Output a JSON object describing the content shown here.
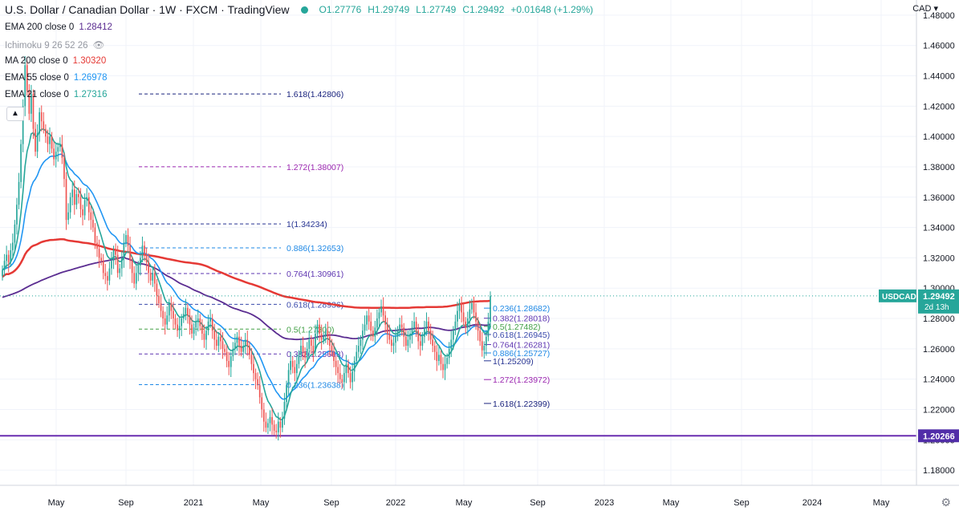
{
  "header": {
    "title": "U.S. Dollar / Canadian Dollar · 1W · FXCM · TradingView",
    "open": "O1.27776",
    "high": "H1.29749",
    "low": "L1.27749",
    "close": "C1.29492",
    "change": "+0.01648 (+1.29%)"
  },
  "indicators": [
    {
      "label": "EMA 200 close 0",
      "value": "1.28412",
      "color": "#5b2d91"
    },
    {
      "label": "Ichimoku 9 26 52 26",
      "value": "",
      "color": ""
    },
    {
      "label": "MA 200 close 0",
      "value": "1.30320",
      "color": "#e53935"
    },
    {
      "label": "EMA 55 close 0",
      "value": "1.26978",
      "color": "#2196f3"
    },
    {
      "label": "EMA 21 close 0",
      "value": "1.27316",
      "color": "#26a69a"
    }
  ],
  "currency_label": "CAD",
  "price_tag": {
    "symbol": "USDCAD",
    "price": "1.29492",
    "countdown": "2d 13h"
  },
  "level_tag": "1.20266",
  "colors": {
    "up": "#26a69a",
    "down": "#ef5350",
    "ma200": "#e53935",
    "ema200": "#5b2d91",
    "ema55": "#2196f3",
    "ema21": "#26a69a",
    "support": "#6a2fb0",
    "axis_text": "#131722"
  },
  "chart_data": {
    "type": "candlestick",
    "y_axis": {
      "min": 1.17,
      "max": 1.49,
      "ticks": [
        "1.48000",
        "1.46000",
        "1.44000",
        "1.42000",
        "1.40000",
        "1.38000",
        "1.36000",
        "1.34000",
        "1.32000",
        "1.30000",
        "1.28000",
        "1.26000",
        "1.24000",
        "1.22000",
        "1.20000",
        "1.18000"
      ]
    },
    "x_axis": {
      "ticks": [
        "May",
        "Sep",
        "2021",
        "May",
        "Sep",
        "2022",
        "May",
        "Sep",
        "2023",
        "May",
        "Sep",
        "2024",
        "May"
      ]
    },
    "fib_left": [
      {
        "label": "1.618(1.42806)",
        "price": 1.42806,
        "color": "#1a237e"
      },
      {
        "label": "1.272(1.38007)",
        "price": 1.38007,
        "color": "#9c27b0"
      },
      {
        "label": "1(1.34234)",
        "price": 1.34234,
        "color": "#283593"
      },
      {
        "label": "0.886(1.32653)",
        "price": 1.32653,
        "color": "#1e88e5"
      },
      {
        "label": "0.764(1.30961)",
        "price": 1.30961,
        "color": "#5e35b1"
      },
      {
        "label": "0.618(1.28936)",
        "price": 1.28936,
        "color": "#3949ab"
      },
      {
        "label": "0.5(1.27300)",
        "price": 1.273,
        "color": "#43a047"
      },
      {
        "label": "0.382(1.25663)",
        "price": 1.25663,
        "color": "#5e35b1"
      },
      {
        "label": "0.236(1.23638)",
        "price": 1.23638,
        "color": "#1e88e5"
      }
    ],
    "fib_right": [
      {
        "label": "0.236(1.28682)",
        "price": 1.28682,
        "color": "#1e88e5"
      },
      {
        "label": "0.382(1.28018)",
        "price": 1.28018,
        "color": "#5e35b1"
      },
      {
        "label": "0.5(1.27482)",
        "price": 1.27482,
        "color": "#43a047"
      },
      {
        "label": "0.618(1.26945)",
        "price": 1.26945,
        "color": "#3949ab"
      },
      {
        "label": "0.764(1.26281)",
        "price": 1.26281,
        "color": "#5e35b1"
      },
      {
        "label": "0.886(1.25727)",
        "price": 1.25727,
        "color": "#1e88e5"
      },
      {
        "label": "1(1.25209)",
        "price": 1.25209,
        "color": "#283593"
      },
      {
        "label": "1.272(1.23972)",
        "price": 1.23972,
        "color": "#9c27b0"
      },
      {
        "label": "1.618(1.22399)",
        "price": 1.22399,
        "color": "#1a237e"
      }
    ],
    "support_level": 1.20266,
    "last_price": 1.29492,
    "closes": [
      1.312,
      1.318,
      1.322,
      1.317,
      1.325,
      1.33,
      1.342,
      1.355,
      1.37,
      1.395,
      1.42,
      1.447,
      1.43,
      1.415,
      1.428,
      1.405,
      1.39,
      1.402,
      1.416,
      1.41,
      1.405,
      1.4,
      1.395,
      1.4,
      1.392,
      1.385,
      1.39,
      1.393,
      1.395,
      1.386,
      1.372,
      1.345,
      1.35,
      1.36,
      1.365,
      1.355,
      1.362,
      1.36,
      1.352,
      1.348,
      1.358,
      1.36,
      1.35,
      1.345,
      1.34,
      1.33,
      1.326,
      1.32,
      1.318,
      1.31,
      1.308,
      1.305,
      1.313,
      1.318,
      1.325,
      1.322,
      1.31,
      1.313,
      1.32,
      1.33,
      1.335,
      1.328,
      1.318,
      1.31,
      1.303,
      1.31,
      1.315,
      1.32,
      1.328,
      1.322,
      1.317,
      1.31,
      1.305,
      1.31,
      1.303,
      1.295,
      1.29,
      1.285,
      1.28,
      1.276,
      1.282,
      1.29,
      1.285,
      1.28,
      1.276,
      1.272,
      1.275,
      1.28,
      1.283,
      1.287,
      1.282,
      1.276,
      1.27,
      1.274,
      1.278,
      1.28,
      1.275,
      1.27,
      1.266,
      1.272,
      1.278,
      1.28,
      1.272,
      1.266,
      1.262,
      1.268,
      1.265,
      1.26,
      1.258,
      1.252,
      1.248,
      1.255,
      1.26,
      1.264,
      1.268,
      1.262,
      1.258,
      1.262,
      1.266,
      1.262,
      1.256,
      1.25,
      1.244,
      1.24,
      1.236,
      1.228,
      1.22,
      1.212,
      1.208,
      1.211,
      1.215,
      1.21,
      1.206,
      1.205,
      1.212,
      1.208,
      1.214,
      1.225,
      1.236,
      1.246,
      1.252,
      1.248,
      1.244,
      1.25,
      1.256,
      1.262,
      1.258,
      1.254,
      1.26,
      1.266,
      1.262,
      1.258,
      1.27,
      1.276,
      1.27,
      1.266,
      1.268,
      1.272,
      1.268,
      1.262,
      1.258,
      1.252,
      1.248,
      1.244,
      1.24,
      1.238,
      1.244,
      1.25,
      1.244,
      1.238,
      1.245,
      1.252,
      1.258,
      1.262,
      1.266,
      1.272,
      1.276,
      1.282,
      1.278,
      1.272,
      1.268,
      1.274,
      1.28,
      1.284,
      1.288,
      1.282,
      1.276,
      1.27,
      1.266,
      1.262,
      1.264,
      1.268,
      1.272,
      1.276,
      1.274,
      1.268,
      1.262,
      1.266,
      1.27,
      1.274,
      1.278,
      1.272,
      1.265,
      1.262,
      1.268,
      1.274,
      1.278,
      1.272,
      1.266,
      1.262,
      1.258,
      1.252,
      1.256,
      1.25,
      1.246,
      1.25,
      1.254,
      1.26,
      1.266,
      1.272,
      1.278,
      1.285,
      1.29,
      1.284,
      1.278,
      1.274,
      1.28,
      1.286,
      1.29,
      1.284,
      1.278,
      1.272,
      1.265,
      1.259,
      1.262,
      1.268,
      1.2778,
      1.2949
    ]
  }
}
